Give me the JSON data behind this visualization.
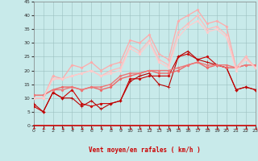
{
  "xlabel": "Vent moyen/en rafales ( km/h )",
  "xlim": [
    0,
    23
  ],
  "ylim": [
    0,
    45
  ],
  "xticks": [
    0,
    1,
    2,
    3,
    4,
    5,
    6,
    7,
    8,
    9,
    10,
    11,
    12,
    13,
    14,
    15,
    16,
    17,
    18,
    19,
    20,
    21,
    22,
    23
  ],
  "yticks": [
    0,
    5,
    10,
    15,
    20,
    25,
    30,
    35,
    40,
    45
  ],
  "bg_color": "#c8eaea",
  "grid_color": "#9bbfbf",
  "series": [
    {
      "x": [
        0,
        1,
        2,
        3,
        4,
        5,
        6,
        7,
        8,
        9,
        10,
        11,
        12,
        13,
        14,
        15,
        16,
        17,
        18,
        19,
        20,
        21,
        22,
        23
      ],
      "y": [
        7,
        5,
        12,
        10,
        13,
        8,
        7,
        8,
        8,
        9,
        17,
        17,
        18,
        18,
        18,
        25,
        26,
        24,
        25,
        22,
        21,
        13,
        14,
        13
      ],
      "color": "#cc0000",
      "lw": 0.8,
      "marker": "D",
      "ms": 1.5
    },
    {
      "x": [
        0,
        1,
        2,
        3,
        4,
        5,
        6,
        7,
        8,
        9,
        10,
        11,
        12,
        13,
        14,
        15,
        16,
        17,
        18,
        19,
        20,
        21,
        22,
        23
      ],
      "y": [
        8,
        5,
        12,
        10,
        10,
        7,
        9,
        6,
        8,
        9,
        16,
        18,
        19,
        15,
        14,
        25,
        27,
        24,
        23,
        22,
        21,
        13,
        14,
        13
      ],
      "color": "#bb0000",
      "lw": 0.8,
      "marker": "+",
      "ms": 2.5
    },
    {
      "x": [
        0,
        1,
        2,
        3,
        4,
        5,
        6,
        7,
        8,
        9,
        10,
        11,
        12,
        13,
        14,
        15,
        16,
        17,
        18,
        19,
        20,
        21,
        22,
        23
      ],
      "y": [
        11,
        11,
        13,
        14,
        14,
        13,
        14,
        13,
        14,
        17,
        18,
        19,
        20,
        19,
        19,
        20,
        22,
        23,
        21,
        22,
        21,
        21,
        22,
        22
      ],
      "color": "#ee6666",
      "lw": 1.0,
      "marker": "D",
      "ms": 1.5
    },
    {
      "x": [
        0,
        1,
        2,
        3,
        4,
        5,
        6,
        7,
        8,
        9,
        10,
        11,
        12,
        13,
        14,
        15,
        16,
        17,
        18,
        19,
        20,
        21,
        22,
        23
      ],
      "y": [
        11,
        11,
        13,
        13,
        14,
        13,
        14,
        14,
        15,
        18,
        19,
        19,
        20,
        20,
        20,
        21,
        22,
        23,
        22,
        22,
        22,
        21,
        22,
        22
      ],
      "color": "#ee7777",
      "lw": 1.0,
      "marker": "D",
      "ms": 1.5
    },
    {
      "x": [
        0,
        1,
        2,
        3,
        4,
        5,
        6,
        7,
        8,
        9,
        10,
        11,
        12,
        13,
        14,
        15,
        16,
        17,
        18,
        19,
        20,
        21,
        22,
        23
      ],
      "y": [
        10,
        10,
        18,
        17,
        22,
        21,
        23,
        20,
        22,
        23,
        31,
        30,
        33,
        26,
        24,
        38,
        40,
        42,
        37,
        38,
        36,
        21,
        25,
        21
      ],
      "color": "#ffaaaa",
      "lw": 0.9,
      "marker": "D",
      "ms": 1.5
    },
    {
      "x": [
        0,
        1,
        2,
        3,
        4,
        5,
        6,
        7,
        8,
        9,
        10,
        11,
        12,
        13,
        14,
        15,
        16,
        17,
        18,
        19,
        20,
        21,
        22,
        23
      ],
      "y": [
        10,
        10,
        17,
        17,
        18,
        19,
        20,
        18,
        20,
        21,
        29,
        27,
        31,
        24,
        22,
        34,
        37,
        40,
        35,
        36,
        33,
        21,
        25,
        21
      ],
      "color": "#ffbbbb",
      "lw": 0.9,
      "marker": "D",
      "ms": 1.5
    },
    {
      "x": [
        0,
        1,
        2,
        3,
        4,
        5,
        6,
        7,
        8,
        9,
        10,
        11,
        12,
        13,
        14,
        15,
        16,
        17,
        18,
        19,
        20,
        21,
        22,
        23
      ],
      "y": [
        10,
        10,
        17,
        17,
        18,
        19,
        20,
        18,
        19,
        20,
        28,
        26,
        30,
        23,
        21,
        32,
        36,
        38,
        34,
        35,
        32,
        20,
        24,
        21
      ],
      "color": "#ffcccc",
      "lw": 0.9,
      "marker": "D",
      "ms": 1.5
    }
  ],
  "wind_arrow_color": "#cc0000",
  "arrow_angles": [
    225,
    210,
    210,
    210,
    195,
    195,
    195,
    195,
    195,
    195,
    180,
    180,
    180,
    180,
    180,
    180,
    180,
    180,
    180,
    180,
    180,
    180,
    180,
    180
  ]
}
